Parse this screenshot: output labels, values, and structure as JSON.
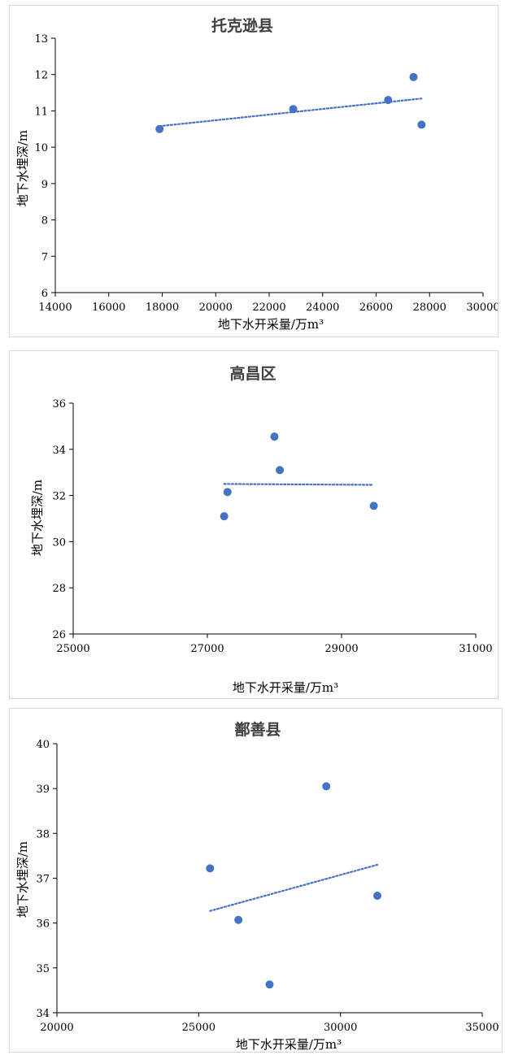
{
  "chart_data": [
    {
      "type": "scatter",
      "title": "托克逊县",
      "xlabel": "地下水开采量/万m³",
      "ylabel": "地下水埋深/m",
      "xlim": [
        14000,
        30000
      ],
      "ylim": [
        6,
        13
      ],
      "x_ticks": [
        14000,
        16000,
        18000,
        20000,
        22000,
        24000,
        26000,
        28000,
        30000
      ],
      "y_ticks": [
        6,
        7,
        8,
        9,
        10,
        11,
        12,
        13
      ],
      "points": [
        {
          "x": 17900,
          "y": 10.5
        },
        {
          "x": 22900,
          "y": 11.05
        },
        {
          "x": 26450,
          "y": 11.3
        },
        {
          "x": 27400,
          "y": 11.93
        },
        {
          "x": 27700,
          "y": 10.62
        }
      ],
      "trendline": {
        "type": "linear",
        "x0": 17900,
        "y0": 10.58,
        "x1": 27700,
        "y1": 11.34
      },
      "grid": false,
      "legend": "none",
      "colors": {
        "marker": "#4472c4",
        "trend": "#4472c4",
        "axis": "#000000"
      }
    },
    {
      "type": "scatter",
      "title": "高昌区",
      "xlabel": "地下水开采量/万m³",
      "ylabel": "地下水埋深/m",
      "xlim": [
        25000,
        31000
      ],
      "ylim": [
        26,
        36
      ],
      "x_ticks": [
        25000,
        27000,
        29000,
        31000
      ],
      "y_ticks": [
        26,
        28,
        30,
        32,
        34,
        36
      ],
      "points": [
        {
          "x": 27250,
          "y": 31.1
        },
        {
          "x": 27300,
          "y": 32.15
        },
        {
          "x": 28000,
          "y": 34.55
        },
        {
          "x": 28080,
          "y": 33.1
        },
        {
          "x": 29480,
          "y": 31.55
        }
      ],
      "trendline": {
        "type": "linear",
        "x0": 27250,
        "y0": 32.5,
        "x1": 29480,
        "y1": 32.46
      },
      "grid": false,
      "legend": "none",
      "colors": {
        "marker": "#4472c4",
        "trend": "#4472c4",
        "axis": "#000000"
      }
    },
    {
      "type": "scatter",
      "title": "鄯善县",
      "xlabel": "地下水开采量/万m³",
      "ylabel": "地下水埋深/m",
      "xlim": [
        20000,
        35000
      ],
      "ylim": [
        34,
        40
      ],
      "x_ticks": [
        20000,
        25000,
        30000,
        35000
      ],
      "y_ticks": [
        34,
        35,
        36,
        37,
        38,
        39,
        40
      ],
      "points": [
        {
          "x": 25400,
          "y": 37.22
        },
        {
          "x": 26400,
          "y": 36.07
        },
        {
          "x": 27500,
          "y": 34.63
        },
        {
          "x": 29500,
          "y": 39.05
        },
        {
          "x": 31300,
          "y": 36.61
        }
      ],
      "trendline": {
        "type": "linear",
        "x0": 25400,
        "y0": 36.27,
        "x1": 31300,
        "y1": 37.3
      },
      "grid": false,
      "legend": "none",
      "colors": {
        "marker": "#4472c4",
        "trend": "#4472c4",
        "axis": "#000000"
      }
    }
  ]
}
